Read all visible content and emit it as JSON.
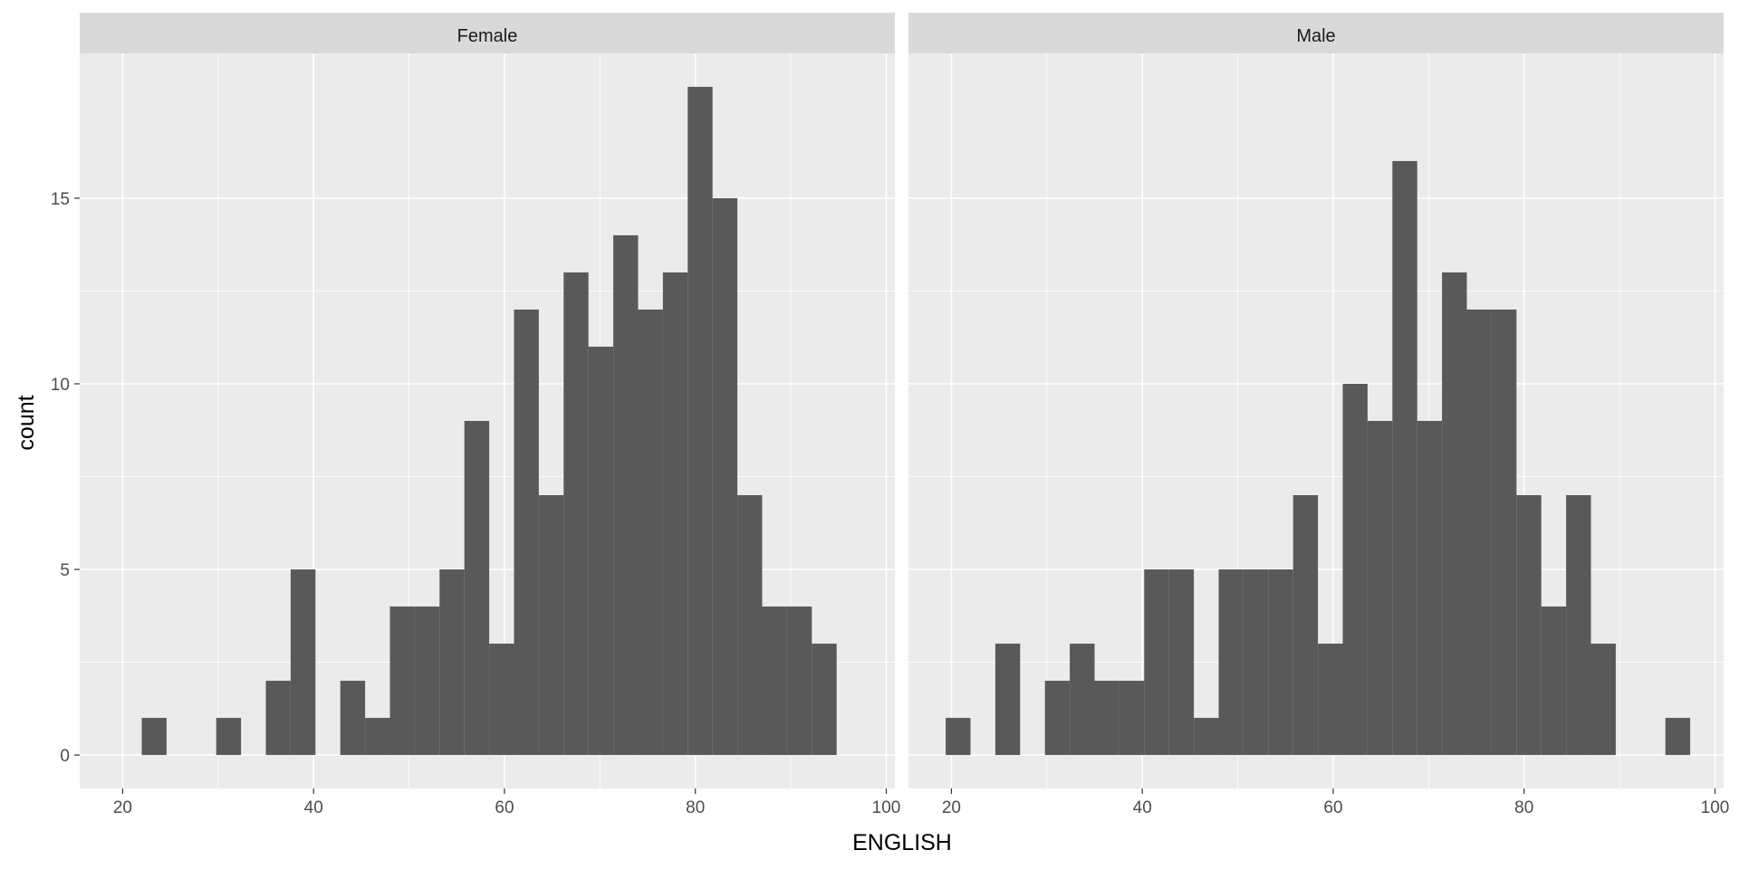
{
  "chart_data": {
    "type": "bar",
    "subtype": "faceted-histogram",
    "xlabel": "ENGLISH",
    "ylabel": "count",
    "xlim": [
      15.5,
      100.9
    ],
    "ylim": [
      -0.9,
      18.9
    ],
    "x_ticks": [
      20,
      40,
      60,
      80,
      100
    ],
    "y_ticks": [
      0,
      5,
      10,
      15
    ],
    "bin_width": 2.6,
    "grid": true,
    "legend": "none",
    "colors": {
      "bar": "#595959",
      "panel": "#ebebeb",
      "grid": "#ffffff",
      "strip": "#d9d9d9"
    },
    "facets": [
      {
        "label": "Female",
        "bins": [
          {
            "x": 23.3,
            "count": 1
          },
          {
            "x": 31.1,
            "count": 1
          },
          {
            "x": 36.3,
            "count": 2
          },
          {
            "x": 38.9,
            "count": 5
          },
          {
            "x": 44.1,
            "count": 2
          },
          {
            "x": 46.7,
            "count": 1
          },
          {
            "x": 49.3,
            "count": 4
          },
          {
            "x": 51.9,
            "count": 4
          },
          {
            "x": 54.5,
            "count": 5
          },
          {
            "x": 57.1,
            "count": 9
          },
          {
            "x": 59.7,
            "count": 3
          },
          {
            "x": 62.3,
            "count": 12
          },
          {
            "x": 64.9,
            "count": 7
          },
          {
            "x": 67.5,
            "count": 13
          },
          {
            "x": 70.1,
            "count": 11
          },
          {
            "x": 72.7,
            "count": 14
          },
          {
            "x": 75.3,
            "count": 12
          },
          {
            "x": 77.9,
            "count": 13
          },
          {
            "x": 80.5,
            "count": 18
          },
          {
            "x": 83.1,
            "count": 15
          },
          {
            "x": 85.7,
            "count": 7
          },
          {
            "x": 88.3,
            "count": 4
          },
          {
            "x": 90.9,
            "count": 4
          },
          {
            "x": 93.5,
            "count": 3
          }
        ]
      },
      {
        "label": "Male",
        "bins": [
          {
            "x": 20.7,
            "count": 1
          },
          {
            "x": 25.9,
            "count": 3
          },
          {
            "x": 31.1,
            "count": 2
          },
          {
            "x": 33.7,
            "count": 3
          },
          {
            "x": 36.3,
            "count": 2
          },
          {
            "x": 38.9,
            "count": 2
          },
          {
            "x": 41.5,
            "count": 5
          },
          {
            "x": 44.1,
            "count": 5
          },
          {
            "x": 46.7,
            "count": 1
          },
          {
            "x": 49.3,
            "count": 5
          },
          {
            "x": 51.9,
            "count": 5
          },
          {
            "x": 54.5,
            "count": 5
          },
          {
            "x": 57.1,
            "count": 7
          },
          {
            "x": 59.7,
            "count": 3
          },
          {
            "x": 62.3,
            "count": 10
          },
          {
            "x": 64.9,
            "count": 9
          },
          {
            "x": 67.5,
            "count": 16
          },
          {
            "x": 70.1,
            "count": 9
          },
          {
            "x": 72.7,
            "count": 13
          },
          {
            "x": 75.3,
            "count": 12
          },
          {
            "x": 77.9,
            "count": 12
          },
          {
            "x": 80.5,
            "count": 7
          },
          {
            "x": 83.1,
            "count": 4
          },
          {
            "x": 85.7,
            "count": 7
          },
          {
            "x": 88.3,
            "count": 3
          },
          {
            "x": 96.1,
            "count": 1
          }
        ]
      }
    ]
  }
}
